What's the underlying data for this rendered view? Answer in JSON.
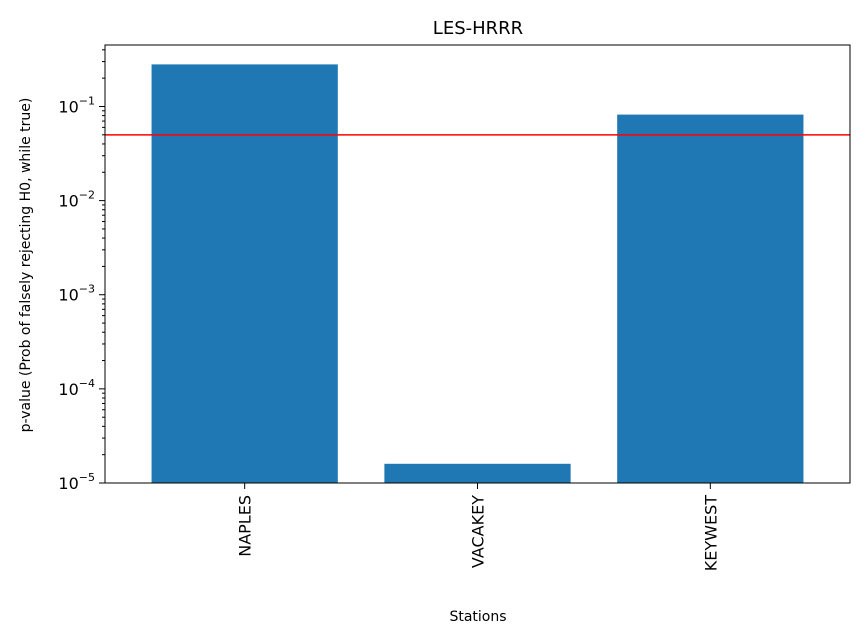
{
  "chart_data": {
    "type": "bar",
    "title": "LES-HRRR",
    "xlabel": "Stations",
    "ylabel": "p-value (Prob of falsely rejecting H0, while true)",
    "categories": [
      "NAPLES",
      "VACAKEY",
      "KEYWEST"
    ],
    "values": [
      0.28,
      1.6e-05,
      0.082
    ],
    "yscale": "log",
    "ylim": [
      1e-05,
      0.45
    ],
    "yticks": [
      {
        "value": 1e-05,
        "base": "10",
        "exp": "−5"
      },
      {
        "value": 0.0001,
        "base": "10",
        "exp": "−4"
      },
      {
        "value": 0.001,
        "base": "10",
        "exp": "−3"
      },
      {
        "value": 0.01,
        "base": "10",
        "exp": "−2"
      },
      {
        "value": 0.1,
        "base": "10",
        "exp": "−1"
      }
    ],
    "reference_line": {
      "value": 0.05,
      "color": "#ff0000"
    },
    "bar_color": "#1f77b4",
    "grid": false,
    "xtick_rotation": "vertical"
  }
}
